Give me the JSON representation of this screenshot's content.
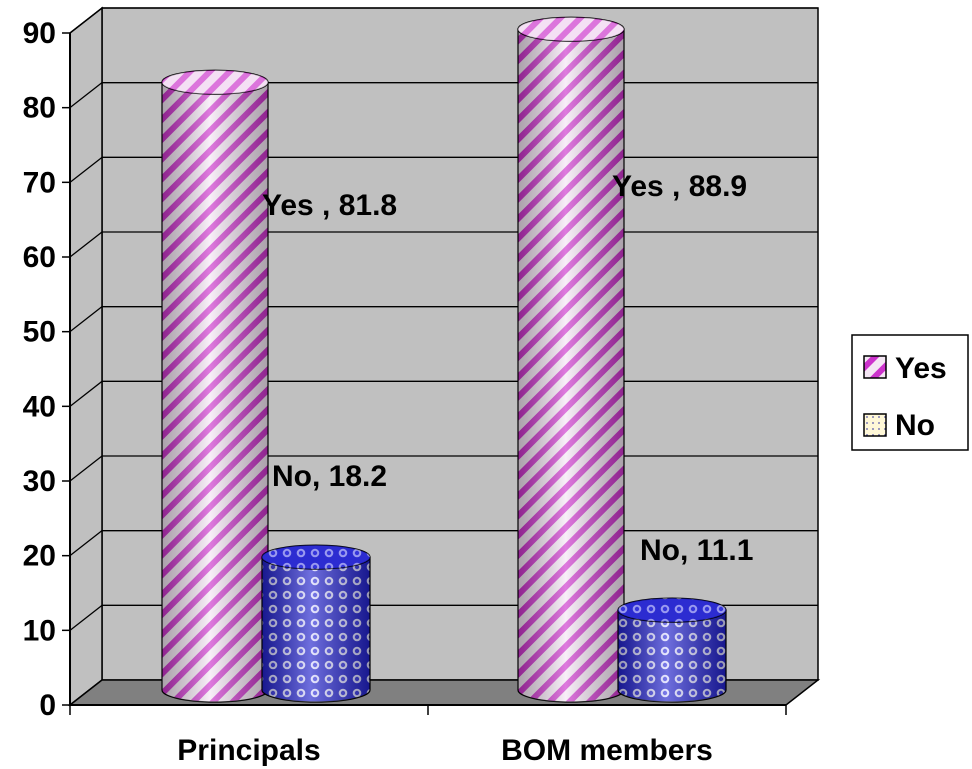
{
  "chart_data": {
    "type": "bar",
    "style": "3d-cylinder",
    "categories": [
      "Principals",
      "BOM members"
    ],
    "series": [
      {
        "name": "Yes",
        "values": [
          81.8,
          88.9
        ],
        "color": "#cc33cc",
        "pattern": "diagonal-stripes"
      },
      {
        "name": "No",
        "values": [
          18.2,
          11.1
        ],
        "color": "#2222cc",
        "pattern": "dotted-grid"
      }
    ],
    "data_labels": [
      [
        "Yes , 81.8",
        "Yes , 88.9"
      ],
      [
        "No, 18.2",
        "No, 11.1"
      ]
    ],
    "y_ticks": [
      "0",
      "10",
      "20",
      "30",
      "40",
      "50",
      "60",
      "70",
      "80",
      "90"
    ],
    "ylim": [
      0,
      90
    ],
    "grid": true,
    "legend": "right",
    "title": "",
    "xlabel": "",
    "ylabel": "",
    "colors": {
      "wall": "#c0c0c0",
      "floor": "#808080",
      "grid": "#000000"
    }
  }
}
